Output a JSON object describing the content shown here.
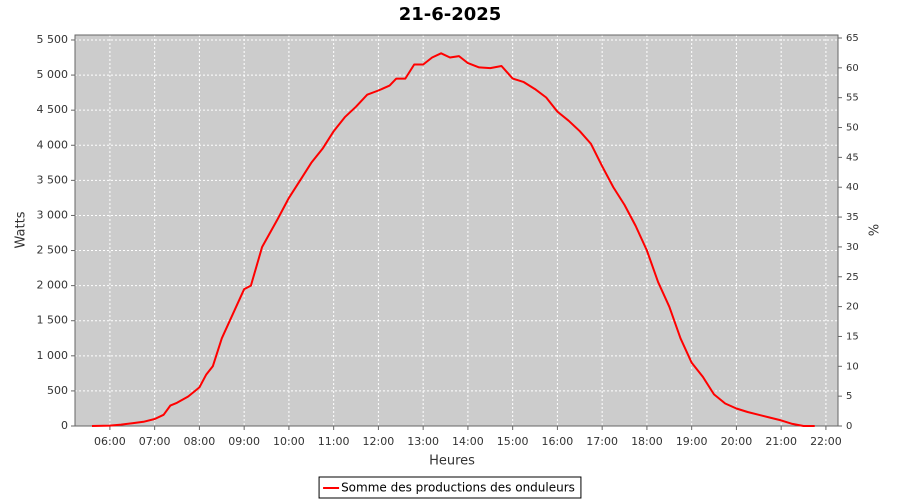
{
  "chart_data": {
    "type": "line",
    "title": "21-6-2025",
    "x_label": "Heures",
    "y_label": "Watts",
    "y2_label": "%",
    "x": [
      5.6,
      6.0,
      6.25,
      6.5,
      6.75,
      7.0,
      7.2,
      7.35,
      7.5,
      7.75,
      8.0,
      8.15,
      8.3,
      8.5,
      8.75,
      9.0,
      9.15,
      9.4,
      9.75,
      10.0,
      10.25,
      10.5,
      10.75,
      11.0,
      11.25,
      11.5,
      11.75,
      12.0,
      12.25,
      12.4,
      12.6,
      12.8,
      13.0,
      13.2,
      13.4,
      13.6,
      13.8,
      14.0,
      14.25,
      14.5,
      14.75,
      15.0,
      15.25,
      15.5,
      15.75,
      16.0,
      16.25,
      16.5,
      16.75,
      17.0,
      17.25,
      17.5,
      17.75,
      18.0,
      18.25,
      18.5,
      18.75,
      19.0,
      19.25,
      19.5,
      19.75,
      20.0,
      20.25,
      20.5,
      20.75,
      21.0,
      21.25,
      21.5,
      21.75
    ],
    "series": [
      {
        "name": "Somme des productions des onduleurs",
        "color": "#ff0000",
        "values": [
          0,
          5,
          20,
          40,
          60,
          100,
          160,
          290,
          330,
          420,
          550,
          730,
          850,
          1250,
          1600,
          1950,
          2000,
          2550,
          2950,
          3250,
          3500,
          3750,
          3950,
          4200,
          4400,
          4550,
          4720,
          4780,
          4850,
          4950,
          4950,
          5150,
          5150,
          5250,
          5310,
          5250,
          5270,
          5170,
          5110,
          5100,
          5130,
          4950,
          4900,
          4800,
          4680,
          4480,
          4350,
          4200,
          4020,
          3700,
          3400,
          3150,
          2850,
          2500,
          2050,
          1700,
          1250,
          900,
          700,
          450,
          320,
          250,
          200,
          160,
          120,
          80,
          30,
          0,
          0
        ]
      }
    ],
    "xlim": [
      5.22,
      22.27
    ],
    "xticks": [
      {
        "value": 6,
        "label": "06:00"
      },
      {
        "value": 7,
        "label": "07:00"
      },
      {
        "value": 8,
        "label": "08:00"
      },
      {
        "value": 9,
        "label": "09:00"
      },
      {
        "value": 10,
        "label": "10:00"
      },
      {
        "value": 11,
        "label": "11:00"
      },
      {
        "value": 12,
        "label": "12:00"
      },
      {
        "value": 13,
        "label": "13:00"
      },
      {
        "value": 14,
        "label": "14:00"
      },
      {
        "value": 15,
        "label": "15:00"
      },
      {
        "value": 16,
        "label": "16:00"
      },
      {
        "value": 17,
        "label": "17:00"
      },
      {
        "value": 18,
        "label": "18:00"
      },
      {
        "value": 19,
        "label": "19:00"
      },
      {
        "value": 20,
        "label": "20:00"
      },
      {
        "value": 21,
        "label": "21:00"
      },
      {
        "value": 22,
        "label": "22:00"
      }
    ],
    "ylim": [
      0,
      5571
    ],
    "yticks": [
      0,
      500,
      {
        "value": 1000,
        "label": "1 000"
      },
      {
        "value": 1500,
        "label": "1 500"
      },
      {
        "value": 2000,
        "label": "2 000"
      },
      {
        "value": 2500,
        "label": "2 500"
      },
      {
        "value": 3000,
        "label": "3 000"
      },
      {
        "value": 3500,
        "label": "3 500"
      },
      {
        "value": 4000,
        "label": "4 000"
      },
      {
        "value": 4500,
        "label": "4 500"
      },
      {
        "value": 5000,
        "label": "5 000"
      },
      {
        "value": 5500,
        "label": "5 500"
      }
    ],
    "y2lim": [
      0,
      65.5
    ],
    "y2ticks": [
      0,
      5,
      10,
      15,
      20,
      25,
      30,
      35,
      40,
      45,
      50,
      55,
      60,
      65
    ],
    "grid": true,
    "legend": "bottom",
    "plot_background": "#cccccc"
  }
}
